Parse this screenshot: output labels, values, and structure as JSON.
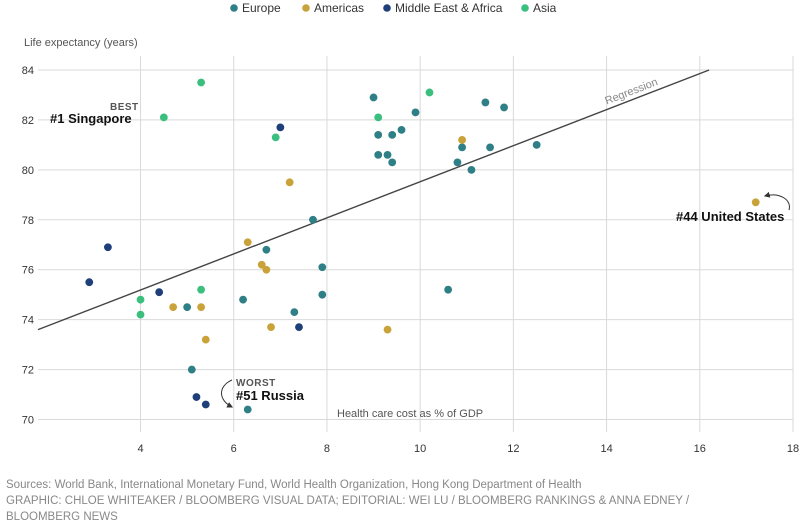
{
  "chart_data": {
    "type": "scatter",
    "legend": [
      {
        "name": "Europe",
        "color": "#2f7f86"
      },
      {
        "name": "Americas",
        "color": "#c9a23a"
      },
      {
        "name": "Middle East & Africa",
        "color": "#1f3f7a"
      },
      {
        "name": "Asia",
        "color": "#3bbf7f"
      }
    ],
    "ylabel": "Life expectancy (years)",
    "xlabel": "Health care cost as % of GDP",
    "xlim": [
      1.8,
      18
    ],
    "ylim": [
      69.5,
      84.4
    ],
    "xticks": [
      4,
      6,
      8,
      10,
      12,
      14,
      16,
      18
    ],
    "yticks": [
      70,
      72,
      74,
      76,
      78,
      80,
      82,
      84
    ],
    "regression": {
      "label": "Regression",
      "x": [
        1.8,
        16.2
      ],
      "y": [
        73.6,
        84.0
      ]
    },
    "series": [
      {
        "name": "Europe",
        "points": [
          [
            9.0,
            82.9
          ],
          [
            9.9,
            82.3
          ],
          [
            11.4,
            82.7
          ],
          [
            11.8,
            82.5
          ],
          [
            9.1,
            81.4
          ],
          [
            9.4,
            81.4
          ],
          [
            9.6,
            81.6
          ],
          [
            9.1,
            80.6
          ],
          [
            9.3,
            80.6
          ],
          [
            9.4,
            80.3
          ],
          [
            10.9,
            80.9
          ],
          [
            11.5,
            80.9
          ],
          [
            12.5,
            81.0
          ],
          [
            10.8,
            80.3
          ],
          [
            11.1,
            80.0
          ],
          [
            7.7,
            78.0
          ],
          [
            6.7,
            76.8
          ],
          [
            7.9,
            76.1
          ],
          [
            7.9,
            75.0
          ],
          [
            10.6,
            75.2
          ],
          [
            6.2,
            74.8
          ],
          [
            5.0,
            74.5
          ],
          [
            7.3,
            74.3
          ],
          [
            5.1,
            72.0
          ],
          [
            6.3,
            70.4
          ]
        ]
      },
      {
        "name": "Americas",
        "points": [
          [
            17.2,
            78.7
          ],
          [
            10.9,
            81.2
          ],
          [
            7.2,
            79.5
          ],
          [
            6.3,
            77.1
          ],
          [
            6.6,
            76.2
          ],
          [
            6.7,
            76.0
          ],
          [
            4.7,
            74.5
          ],
          [
            5.3,
            74.5
          ],
          [
            6.8,
            73.7
          ],
          [
            9.3,
            73.6
          ],
          [
            5.4,
            73.2
          ]
        ]
      },
      {
        "name": "Middle East & Africa",
        "points": [
          [
            7.0,
            81.7
          ],
          [
            3.3,
            76.9
          ],
          [
            2.9,
            75.5
          ],
          [
            4.4,
            75.1
          ],
          [
            7.4,
            73.7
          ],
          [
            5.2,
            70.9
          ],
          [
            5.4,
            70.6
          ]
        ]
      },
      {
        "name": "Asia",
        "points": [
          [
            5.3,
            83.5
          ],
          [
            10.2,
            83.1
          ],
          [
            4.5,
            82.1
          ],
          [
            9.1,
            82.1
          ],
          [
            6.9,
            81.3
          ],
          [
            5.3,
            75.2
          ],
          [
            4.0,
            74.8
          ],
          [
            4.0,
            74.2
          ]
        ]
      }
    ],
    "annotations": {
      "best_label": "BEST",
      "best_text": "#1 Singapore",
      "us_text": "#44 United States",
      "worst_label": "WORST",
      "worst_text": "#51 Russia"
    }
  },
  "footer": {
    "sources": "Sources: World Bank, International Monetary Fund, World Health Organization, Hong Kong Department of Health",
    "credits_line1": "GRAPHIC: CHLOE WHITEAKER / BLOOMBERG VISUAL DATA; EDITORIAL: WEI LU / BLOOMBERG RANKINGS & ANNA EDNEY /",
    "credits_line2": "BLOOMBERG NEWS"
  }
}
